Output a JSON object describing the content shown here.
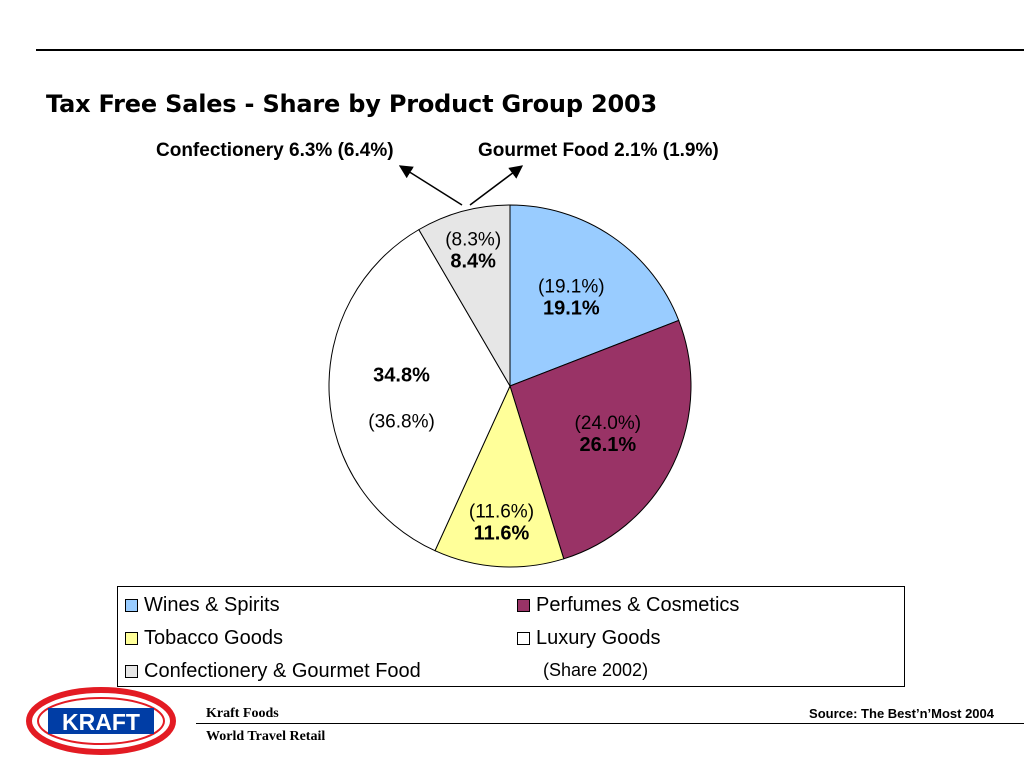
{
  "slide": {
    "title": "Tax Free Sales - Share by Product Group 2003"
  },
  "chart_data": {
    "type": "pie",
    "title": "Tax Free Sales - Share by Product Group 2003",
    "categories": [
      "Wines & Spirits",
      "Perfumes & Cosmetics",
      "Tobacco Goods",
      "Luxury Goods",
      "Confectionery & Gourmet Food"
    ],
    "values_2003": [
      19.1,
      26.1,
      11.6,
      34.8,
      8.4
    ],
    "values_2002": [
      19.1,
      24.0,
      11.6,
      36.8,
      8.3
    ],
    "labels_2003": [
      "19.1%",
      "26.1%",
      "11.6%",
      "34.8%",
      "8.4%"
    ],
    "labels_2002": [
      "(19.1%)",
      "(24.0%)",
      "(11.6%)",
      "(36.8%)",
      "(8.3%)"
    ],
    "colors": [
      "#99CCFF",
      "#993366",
      "#FFFF99",
      "#FFFFFF",
      "#E6E6E6"
    ],
    "callouts": [
      "Confectionery 6.3% (6.4%)",
      "Gourmet Food 2.1% (1.9%)"
    ],
    "legend_note": "(Share 2002)",
    "legend_position": "bottom"
  },
  "footer": {
    "logo_text": "KRAFT",
    "company": "Kraft Foods",
    "division": "World Travel Retail",
    "source": "Source: The Best’n’Most 2004"
  }
}
